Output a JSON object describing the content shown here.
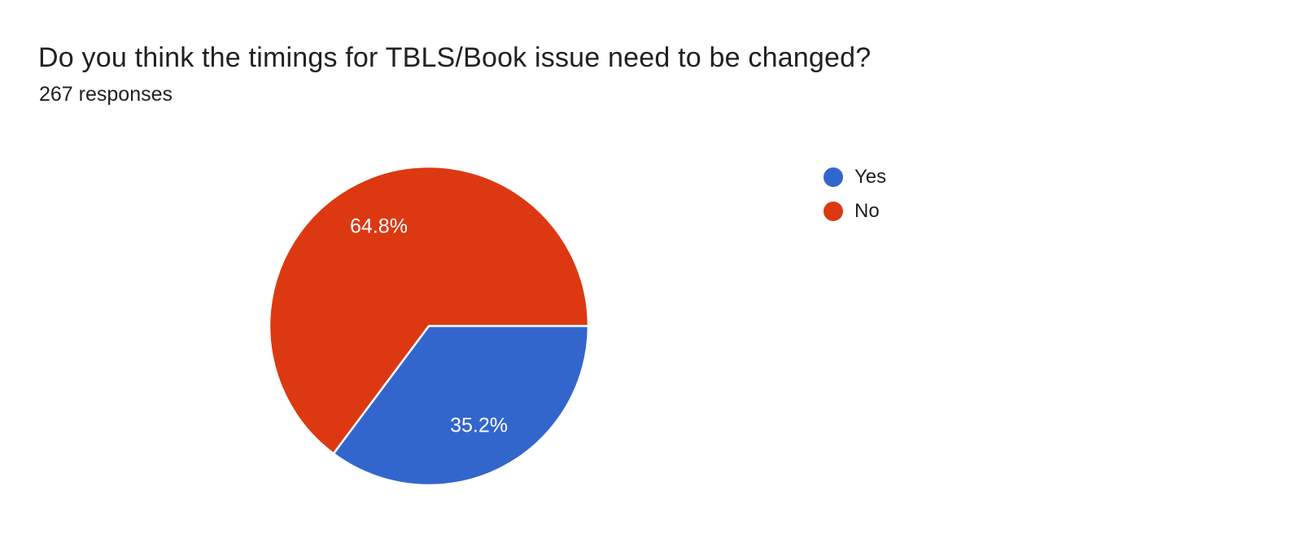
{
  "header": {
    "title": "Do you think the timings for TBLS/Book issue need to be changed?",
    "responses": "267 responses"
  },
  "colors": {
    "background": "#ffffff",
    "text": "#202124",
    "slice_label_text": "#ffffff",
    "slice_separator": "#ffffff"
  },
  "chart_data": {
    "type": "pie",
    "title": "Do you think the timings for TBLS/Book issue need to be changed?",
    "subtitle": "267 responses",
    "total_responses": 267,
    "unit": "percent",
    "legend_position": "right",
    "start_angle_deg": 0,
    "direction": "clockwise",
    "label_radius_ratio": 0.7,
    "slices": [
      {
        "label": "Yes",
        "percent": 35.2,
        "value_label": "35.2%",
        "color": "#3366CC"
      },
      {
        "label": "No",
        "percent": 64.8,
        "value_label": "64.8%",
        "color": "#DC3912"
      }
    ]
  }
}
